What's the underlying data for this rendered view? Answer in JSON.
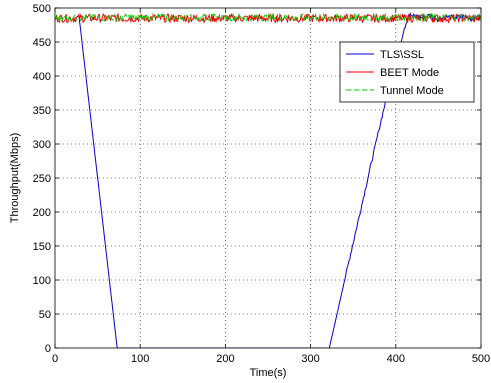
{
  "chart_data": {
    "type": "line",
    "title": "",
    "xlabel": "Time(s)",
    "ylabel": "Throughput(Mbps)",
    "xlim": [
      0,
      500
    ],
    "ylim": [
      0,
      500
    ],
    "x_ticks": [
      0,
      100,
      200,
      300,
      400,
      500
    ],
    "y_ticks": [
      0,
      50,
      100,
      150,
      200,
      250,
      300,
      350,
      400,
      450,
      500
    ],
    "grid": true,
    "legend_position": "top-right",
    "series": [
      {
        "name": "TLS\\SSL",
        "color": "#0000cc",
        "style": "solid",
        "x": [
          28,
          73,
          75,
          200,
          320,
          322,
          340,
          360,
          380,
          395,
          410,
          415,
          420,
          430,
          440,
          450,
          460,
          470,
          480,
          490,
          500
        ],
        "y": [
          490,
          0,
          0,
          0,
          0,
          0,
          100,
          210,
          320,
          400,
          470,
          490,
          488,
          486,
          489,
          484,
          487,
          485,
          488,
          484,
          486
        ]
      },
      {
        "name": "BEET Mode",
        "color": "#ee0000",
        "style": "solid",
        "x": [
          0,
          500
        ],
        "y": [
          485,
          485
        ],
        "noise": 6
      },
      {
        "name": "Tunnel Mode",
        "color": "#00cc00",
        "style": "dashed",
        "x": [
          0,
          500
        ],
        "y": [
          486,
          486
        ],
        "noise": 5
      }
    ]
  }
}
